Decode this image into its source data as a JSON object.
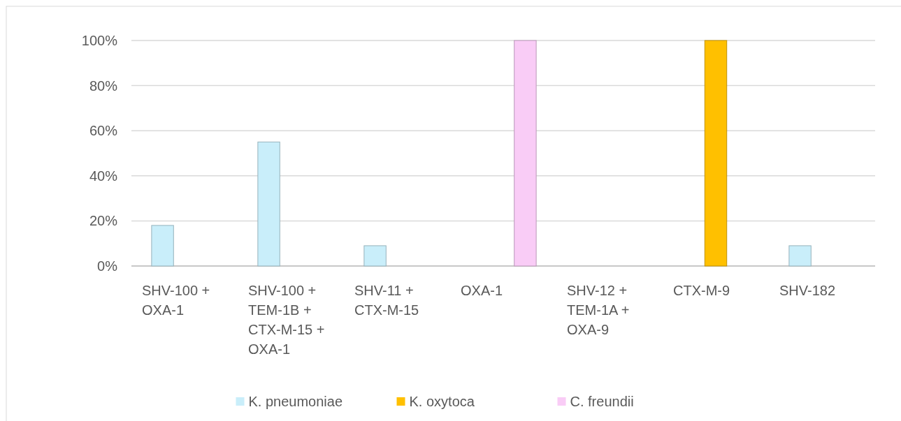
{
  "chart_data": {
    "type": "bar",
    "categories": [
      "SHV-100 + OXA-1",
      "SHV-100 + TEM-1B + CTX-M-15 + OXA-1",
      "SHV-11 + CTX-M-15",
      "OXA-1",
      "SHV-12 + TEM-1A + OXA-9",
      "CTX-M-9",
      "SHV-182"
    ],
    "series": [
      {
        "name": "K. pneumoniae",
        "color": "#c9eefa",
        "values": [
          18,
          55,
          9,
          0,
          0,
          0,
          9
        ]
      },
      {
        "name": "K. oxytoca",
        "color": "#ffc000",
        "values": [
          0,
          0,
          0,
          0,
          0,
          100,
          0
        ]
      },
      {
        "name": "C. freundii",
        "color": "#f9ccf6",
        "values": [
          0,
          0,
          0,
          100,
          0,
          0,
          0
        ]
      }
    ],
    "ylim": [
      0,
      100
    ],
    "yticks": [
      {
        "value": 0,
        "label": "0%"
      },
      {
        "value": 20,
        "label": "20%"
      },
      {
        "value": 40,
        "label": "40%"
      },
      {
        "value": 60,
        "label": "60%"
      },
      {
        "value": 80,
        "label": "80%"
      },
      {
        "value": 100,
        "label": "100%"
      }
    ],
    "grid": "y",
    "legend": "bottom"
  }
}
